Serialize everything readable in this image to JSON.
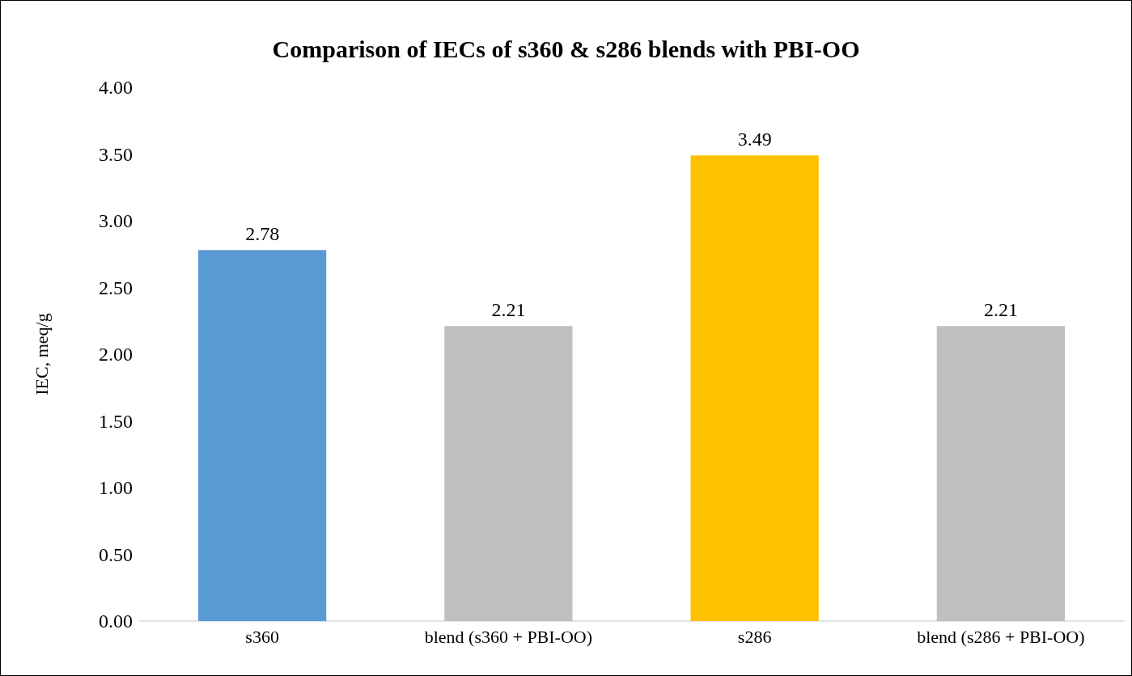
{
  "chart_data": {
    "type": "bar",
    "title": "Comparison of IECs of s360 & s286 blends with PBI-OO",
    "ylabel": "IEC, meq/g",
    "categories": [
      "s360",
      "blend (s360 + PBI-OO)",
      "s286",
      "blend (s286 + PBI-OO)"
    ],
    "values": [
      2.78,
      2.21,
      3.49,
      2.21
    ],
    "colors": [
      "#5b9bd5",
      "#bfbfbf",
      "#ffc000",
      "#bfbfbf"
    ],
    "ylim": [
      0,
      4
    ],
    "yticks": [
      {
        "value": 0,
        "label": "0.00"
      },
      {
        "value": 0.5,
        "label": "0.50"
      },
      {
        "value": 1,
        "label": "1.00"
      },
      {
        "value": 1.5,
        "label": "1.50"
      },
      {
        "value": 2,
        "label": "2.00"
      },
      {
        "value": 2.5,
        "label": "2.50"
      },
      {
        "value": 3,
        "label": "3.00"
      },
      {
        "value": 3.5,
        "label": "3.50"
      },
      {
        "value": 4,
        "label": "4.00"
      }
    ],
    "grid": false,
    "data_labels": true
  }
}
